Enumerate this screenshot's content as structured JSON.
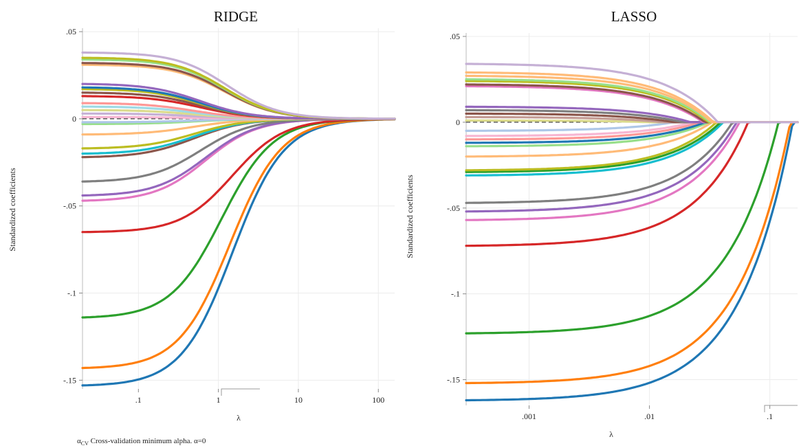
{
  "footnote": {
    "alpha_symbol": "α",
    "alpha_sub": "CV",
    "text": " Cross-validation minimum alpha.  α=0"
  },
  "chart_data": [
    {
      "type": "line",
      "title": "RIDGE",
      "xlabel": "λ",
      "ylabel": "Standardized coefficients",
      "xscale": "log",
      "xlim": [
        0.02,
        160
      ],
      "ylim": [
        -0.155,
        0.052
      ],
      "xticks": [
        {
          "v": 0.1,
          "label": ".1"
        },
        {
          "v": 1,
          "label": "1"
        },
        {
          "v": 10,
          "label": "10"
        },
        {
          "v": 100,
          "label": "100"
        }
      ],
      "yticks": [
        {
          "v": 0.05,
          "label": ".05"
        },
        {
          "v": 0,
          "label": "0"
        },
        {
          "v": -0.05,
          "label": "-.05"
        },
        {
          "v": -0.1,
          "label": "-.1"
        },
        {
          "v": -0.15,
          "label": "-.15"
        }
      ],
      "grid": true,
      "reference_line": 0,
      "series": [
        {
          "start": -0.153,
          "mid": 1.5,
          "color": "#1f77b4"
        },
        {
          "start": -0.143,
          "mid": 1.4,
          "color": "#ff7f0e"
        },
        {
          "start": -0.114,
          "mid": 1.1,
          "color": "#2ca02c"
        },
        {
          "start": -0.065,
          "mid": 1.5,
          "color": "#d62728"
        },
        {
          "start": -0.047,
          "mid": 0.7,
          "color": "#e377c2"
        },
        {
          "start": -0.044,
          "mid": 0.7,
          "color": "#9467bd"
        },
        {
          "start": -0.036,
          "mid": 0.6,
          "color": "#7f7f7f"
        },
        {
          "start": -0.022,
          "mid": 0.5,
          "color": "#8c564b"
        },
        {
          "start": -0.02,
          "mid": 0.5,
          "color": "#17becf"
        },
        {
          "start": -0.017,
          "mid": 0.5,
          "color": "#bcbd22"
        },
        {
          "start": -0.009,
          "mid": 0.5,
          "color": "#ffbb78"
        },
        {
          "start": -0.003,
          "mid": 0.5,
          "color": "#98df8a"
        },
        {
          "start": -0.002,
          "mid": 0.5,
          "color": "#aec7e8"
        },
        {
          "start": 0.001,
          "mid": 0.5,
          "color": "#f7b6d2"
        },
        {
          "start": 0.003,
          "mid": 0.5,
          "color": "#c5b0d5"
        },
        {
          "start": 0.005,
          "mid": 0.5,
          "color": "#dbdb8d"
        },
        {
          "start": 0.007,
          "mid": 0.5,
          "color": "#9edae5"
        },
        {
          "start": 0.009,
          "mid": 0.5,
          "color": "#ff9896"
        },
        {
          "start": 0.013,
          "mid": 0.6,
          "color": "#d62728"
        },
        {
          "start": 0.015,
          "mid": 0.6,
          "color": "#8c564b"
        },
        {
          "start": 0.017,
          "mid": 0.6,
          "color": "#bcbd22"
        },
        {
          "start": 0.018,
          "mid": 0.6,
          "color": "#1f77b4"
        },
        {
          "start": 0.02,
          "mid": 0.6,
          "color": "#9467bd"
        },
        {
          "start": 0.031,
          "mid": 1.2,
          "color": "#ffbb78"
        },
        {
          "start": 0.032,
          "mid": 1.2,
          "color": "#8c564b"
        },
        {
          "start": 0.034,
          "mid": 1.2,
          "color": "#98df8a"
        },
        {
          "start": 0.035,
          "mid": 1.2,
          "color": "#bcbd22"
        },
        {
          "start": 0.038,
          "mid": 1.3,
          "color": "#c5b0d5"
        }
      ]
    },
    {
      "type": "line",
      "title": "LASSO",
      "xlabel": "λ",
      "ylabel": "Standardized coefficients",
      "xscale": "log",
      "xlim": [
        0.0003,
        0.17
      ],
      "ylim": [
        -0.165,
        0.052
      ],
      "xticks": [
        {
          "v": 0.001,
          "label": ".001"
        },
        {
          "v": 0.01,
          "label": ".01"
        },
        {
          "v": 0.1,
          "label": ".1"
        }
      ],
      "yticks": [
        {
          "v": 0.05,
          "label": ".05"
        },
        {
          "v": 0,
          "label": "0"
        },
        {
          "v": -0.05,
          "label": "-.05"
        },
        {
          "v": -0.1,
          "label": "-.1"
        },
        {
          "v": -0.15,
          "label": "-.15"
        }
      ],
      "grid": true,
      "reference_line": 0,
      "series": [
        {
          "start": -0.162,
          "zero": 0.155,
          "color": "#1f77b4"
        },
        {
          "start": -0.152,
          "zero": 0.148,
          "color": "#ff7f0e"
        },
        {
          "start": -0.123,
          "zero": 0.118,
          "color": "#2ca02c"
        },
        {
          "start": -0.072,
          "zero": 0.066,
          "color": "#d62728"
        },
        {
          "start": -0.057,
          "zero": 0.056,
          "color": "#e377c2"
        },
        {
          "start": -0.052,
          "zero": 0.053,
          "color": "#9467bd"
        },
        {
          "start": -0.047,
          "zero": 0.049,
          "color": "#7f7f7f"
        },
        {
          "start": -0.031,
          "zero": 0.041,
          "color": "#17becf"
        },
        {
          "start": -0.029,
          "zero": 0.039,
          "color": "#2ca02c"
        },
        {
          "start": -0.028,
          "zero": 0.036,
          "color": "#bcbd22"
        },
        {
          "start": -0.02,
          "zero": 0.033,
          "color": "#ffbb78"
        },
        {
          "start": -0.014,
          "zero": 0.031,
          "color": "#98df8a"
        },
        {
          "start": -0.012,
          "zero": 0.029,
          "color": "#1f77b4"
        },
        {
          "start": -0.01,
          "zero": 0.026,
          "color": "#ff9896"
        },
        {
          "start": -0.008,
          "zero": 0.023,
          "color": "#f7b6d2"
        },
        {
          "start": -0.005,
          "zero": 0.016,
          "color": "#aec7e8"
        },
        {
          "start": 0.001,
          "zero": 0.01,
          "color": "#dbdb8d"
        },
        {
          "start": 0.003,
          "zero": 0.013,
          "color": "#c49c94"
        },
        {
          "start": 0.005,
          "zero": 0.016,
          "color": "#8c564b"
        },
        {
          "start": 0.007,
          "zero": 0.019,
          "color": "#7f7f7f"
        },
        {
          "start": 0.009,
          "zero": 0.022,
          "color": "#9467bd"
        },
        {
          "start": 0.021,
          "zero": 0.028,
          "color": "#e377c2"
        },
        {
          "start": 0.022,
          "zero": 0.029,
          "color": "#8c564b"
        },
        {
          "start": 0.024,
          "zero": 0.031,
          "color": "#bcbd22"
        },
        {
          "start": 0.025,
          "zero": 0.032,
          "color": "#98df8a"
        },
        {
          "start": 0.027,
          "zero": 0.033,
          "color": "#ffbb78"
        },
        {
          "start": 0.029,
          "zero": 0.034,
          "color": "#ffbb78"
        },
        {
          "start": 0.034,
          "zero": 0.037,
          "color": "#c5b0d5"
        }
      ]
    }
  ]
}
